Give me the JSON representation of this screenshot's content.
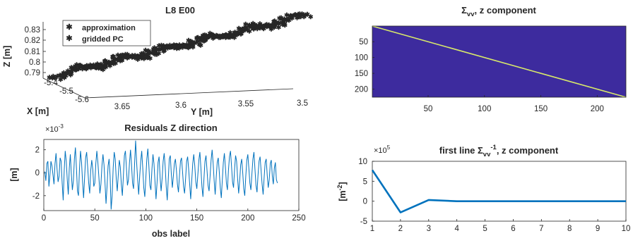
{
  "colors": {
    "line": "#0072bd",
    "approx": "#3ddc3d",
    "gridded": "#f2f23a",
    "heat_bg": "#3d2b9e",
    "heat_diag": "#d7e86a"
  },
  "chart_data": [
    {
      "type": "scatter",
      "title": "L8 E00",
      "xlabel": "X [m]",
      "ylabel": "Y [m]",
      "zlabel": "Z [m]",
      "x_ticks": [
        "-5.4",
        "-5.5",
        "-5.6"
      ],
      "y_ticks": [
        "3.65",
        "3.6",
        "3.55",
        "3.5"
      ],
      "z_ticks": [
        "0.79",
        "0.8",
        "0.81",
        "0.82",
        "0.83"
      ],
      "legend": [
        "approximation",
        "gridded PC"
      ],
      "legend_position": "top-left"
    },
    {
      "type": "line",
      "title": "Residuals Z direction",
      "xlabel": "obs label",
      "ylabel": "[m]",
      "exponent": "×10",
      "exponent_power": "-3",
      "x_ticks": [
        "0",
        "50",
        "100",
        "150",
        "200",
        "250"
      ],
      "y_ticks": [
        "2",
        "0",
        "-2"
      ],
      "xlim": [
        0,
        250
      ],
      "ylim": [
        -3.3,
        2.9
      ],
      "series": [
        {
          "values": [
            0.1,
            -0.7,
            0.8,
            1.0,
            -1.2,
            -0.2,
            1.0,
            0.6,
            -0.2,
            -1.0,
            0.8,
            1.7,
            0.3,
            -0.8,
            -0.3,
            1.3,
            1.0,
            -0.9,
            -2.4,
            0.2,
            1.9,
            1.0,
            -0.6,
            -1.9,
            0.4,
            1.6,
            -0.1,
            -1.5,
            -0.7,
            1.2,
            2.2,
            0.4,
            -1.6,
            -2.0,
            0.4,
            1.9,
            0.9,
            -0.8,
            -2.2,
            -0.4,
            1.3,
            1.8,
            0.5,
            -0.9,
            -1.8,
            0.2,
            1.1,
            0.3,
            -1.2,
            -0.9,
            0.8,
            1.9,
            0.9,
            -0.4,
            -1.8,
            -1.0,
            0.6,
            1.6,
            0.7,
            -0.9,
            -2.7,
            -1.2,
            0.6,
            1.2,
            -0.3,
            -3.2,
            -2.0,
            0.4,
            1.8,
            1.2,
            -0.5,
            -1.6,
            -0.2,
            1.1,
            0.5,
            -1.0,
            -2.0,
            -0.3,
            1.5,
            1.9,
            0.4,
            -1.1,
            -0.6,
            0.9,
            2.0,
            0.7,
            -0.9,
            -1.4,
            0.8,
            2.8,
            0.9,
            -0.6,
            -1.9,
            -0.3,
            1.0,
            1.9,
            0.4,
            -1.3,
            -2.1,
            -0.5,
            1.2,
            2.1,
            0.6,
            -1.1,
            -1.5,
            0.3,
            1.6,
            0.8,
            -0.8,
            -2.3,
            -0.9,
            0.9,
            1.4,
            -0.4,
            -1.6,
            -0.5,
            1.0,
            1.7,
            0.5,
            -1.2,
            -2.4,
            -0.6,
            1.2,
            1.5,
            -0.1,
            -1.3,
            -0.3,
            0.8,
            1.2,
            0.2,
            -1.0,
            -1.7,
            -0.2,
            1.0,
            1.3,
            0.1,
            -1.2,
            -1.8,
            -0.5,
            1.0,
            1.4,
            0.3,
            -1.0,
            -2.3,
            -0.7,
            0.8,
            1.6,
            0.6,
            -0.8,
            -1.4,
            -0.2,
            1.1,
            1.8,
            0.4,
            -1.2,
            -2.1,
            -0.5,
            1.0,
            1.5,
            0.2,
            -1.1,
            -1.6,
            -0.3,
            1.1,
            2.0,
            0.8,
            -0.7,
            -1.9,
            -0.4,
            0.9,
            1.3,
            0.1,
            -1.3,
            -2.2,
            -0.6,
            0.9,
            1.7,
            0.5,
            -0.9,
            -1.5,
            0.2,
            1.4,
            1.9,
            0.6,
            -0.8,
            -1.3,
            0.3,
            1.5,
            1.0,
            -0.5,
            -1.8,
            -0.7,
            0.7,
            1.2,
            0.0,
            -1.4,
            -2.0,
            -0.3,
            1.1,
            1.6,
            0.4,
            -0.9,
            -1.5,
            -0.1,
            1.2,
            1.8,
            0.3,
            -1.1,
            -1.7,
            -0.2,
            1.0,
            1.4,
            0.2,
            -1.0,
            -1.9,
            -0.4,
            0.9,
            1.2,
            -0.2,
            -1.3,
            -0.6,
            0.8,
            1.1,
            -0.3,
            -1.0,
            0.4,
            0.9,
            -0.6,
            -0.9
          ]
        }
      ]
    },
    {
      "type": "heatmap",
      "title_symbol": "Σ",
      "title_sub": "vv",
      "title_rest": ", z component",
      "size": 225,
      "x_ticks": [
        "50",
        "100",
        "150",
        "200"
      ],
      "y_ticks": [
        "50",
        "100",
        "150",
        "200"
      ],
      "description_values": {
        "diagonal": "high",
        "off_diagonal": "low"
      }
    },
    {
      "type": "line",
      "title_pre": "first line Σ",
      "title_sub": "vv",
      "title_sup": "-1",
      "title_rest": ", z component",
      "ylabel": "[m",
      "ylabel_sup": "-2",
      "ylabel_end": "]",
      "exponent": "×10",
      "exponent_power": "5",
      "x_ticks": [
        "1",
        "2",
        "3",
        "4",
        "5",
        "6",
        "7",
        "8",
        "9",
        "10"
      ],
      "y_ticks": [
        "10",
        "5",
        "0",
        "-5"
      ],
      "xlim": [
        1,
        10
      ],
      "ylim": [
        -5,
        10
      ],
      "series": [
        {
          "x": [
            1,
            2,
            3,
            4,
            5,
            6,
            7,
            8,
            9,
            10
          ],
          "values": [
            7.8,
            -2.8,
            0.3,
            0.0,
            0.0,
            0.0,
            0.0,
            0.0,
            0.0,
            0.0
          ]
        }
      ]
    }
  ]
}
